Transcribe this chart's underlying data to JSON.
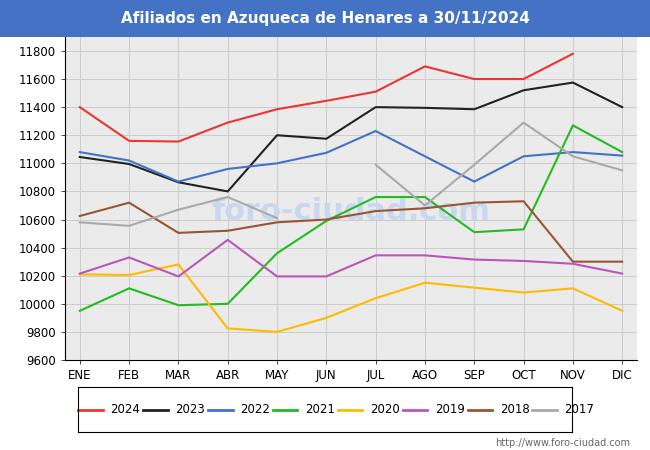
{
  "title": "Afiliados en Azuqueca de Henares a 30/11/2024",
  "title_color": "white",
  "title_bg_color": "#4472c4",
  "ylim": [
    9600,
    11900
  ],
  "months": [
    "ENE",
    "FEB",
    "MAR",
    "ABR",
    "MAY",
    "JUN",
    "JUL",
    "AGO",
    "SEP",
    "OCT",
    "NOV",
    "DIC"
  ],
  "series_order": [
    "2024",
    "2023",
    "2022",
    "2021",
    "2020",
    "2019",
    "2018",
    "2017"
  ],
  "series": {
    "2024": {
      "color": "#ee3333",
      "data": [
        11400,
        11160,
        11155,
        11290,
        11385,
        11445,
        11510,
        11690,
        11600,
        11600,
        11780,
        null
      ]
    },
    "2023": {
      "color": "#222222",
      "data": [
        11045,
        10995,
        10865,
        10800,
        11200,
        11175,
        11400,
        11395,
        11385,
        11520,
        11575,
        11400
      ]
    },
    "2022": {
      "color": "#4472c4",
      "data": [
        11080,
        11020,
        10870,
        10960,
        11000,
        11075,
        11230,
        11050,
        10870,
        11050,
        11080,
        11055
      ]
    },
    "2021": {
      "color": "#22bb22",
      "data": [
        9950,
        10110,
        9990,
        10000,
        10360,
        10590,
        10760,
        10760,
        10510,
        10530,
        11270,
        11080
      ]
    },
    "2020": {
      "color": "#ffbb00",
      "data": [
        10210,
        10205,
        10280,
        9825,
        9800,
        9900,
        10040,
        10150,
        10115,
        10080,
        10110,
        9950
      ]
    },
    "2019": {
      "color": "#bb55bb",
      "data": [
        10215,
        10330,
        10195,
        10455,
        10195,
        10195,
        10345,
        10345,
        10315,
        10305,
        10285,
        10215
      ]
    },
    "2018": {
      "color": "#995533",
      "data": [
        10625,
        10720,
        10505,
        10520,
        10580,
        10600,
        10660,
        10680,
        10720,
        10730,
        10300,
        10300
      ]
    },
    "2017": {
      "color": "#aaaaaa",
      "data": [
        10580,
        10555,
        10670,
        10760,
        10610,
        null,
        10990,
        10700,
        10990,
        11290,
        11050,
        10950
      ]
    }
  },
  "footer_url": "http://www.foro-ciudad.com",
  "grid_color": "#cccccc",
  "plot_bg_color": "#ebebeb",
  "fig_bg_color": "#ffffff",
  "watermark_text": "foro-ciudad.com",
  "watermark_color": "#c8d8f0",
  "watermark_fontsize": 22,
  "title_fontsize": 11,
  "tick_fontsize": 8.5,
  "legend_fontsize": 8.5,
  "line_width": 1.5,
  "footer_fontsize": 7
}
